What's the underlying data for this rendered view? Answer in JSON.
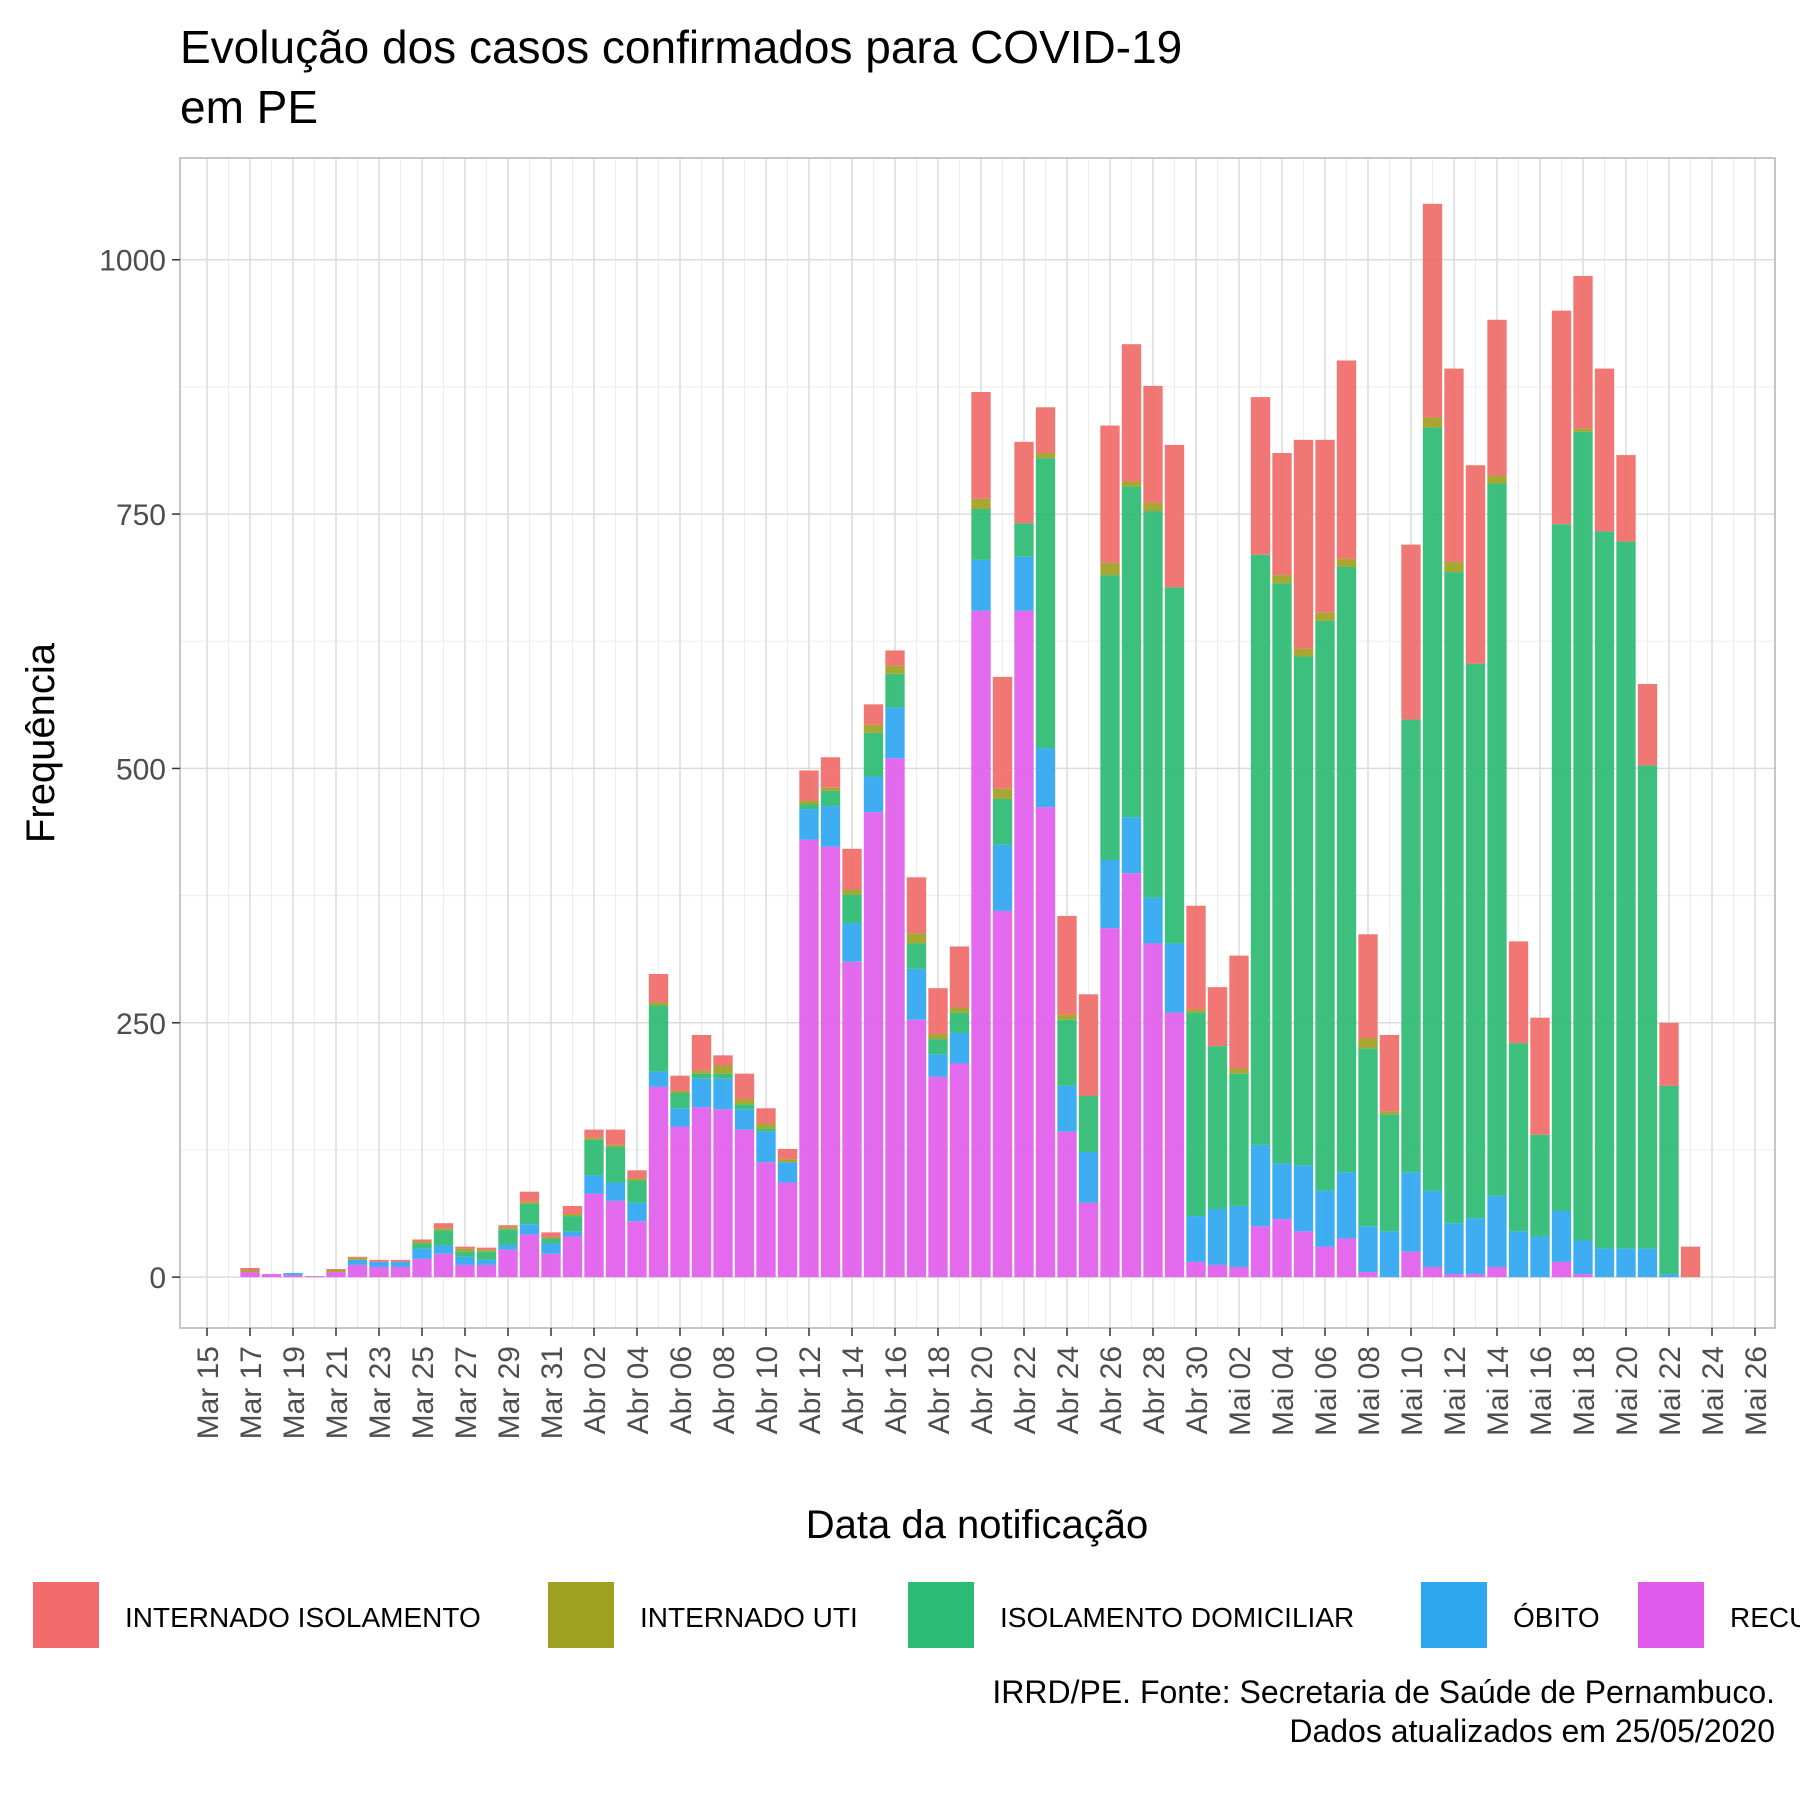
{
  "chart_data": {
    "type": "bar",
    "stacked": true,
    "title_lines": [
      "Evolução dos casos confirmados para COVID-19",
      "em PE"
    ],
    "xlabel": "Data da notificação",
    "ylabel": "Frequência",
    "caption_lines": [
      "IRRD/PE. Fonte: Secretaria de Saúde de Pernambuco.",
      "Dados atualizados em 25/05/2020"
    ],
    "grid": true,
    "legend_position": "bottom",
    "ylim": [
      -50,
      1100
    ],
    "yticks": [
      0,
      250,
      500,
      750,
      1000
    ],
    "x_tick_labels": [
      "Mar 15",
      "Mar 17",
      "Mar 19",
      "Mar 21",
      "Mar 23",
      "Mar 25",
      "Mar 27",
      "Mar 29",
      "Mar 31",
      "Abr 02",
      "Abr 04",
      "Abr 06",
      "Abr 08",
      "Abr 10",
      "Abr 12",
      "Abr 14",
      "Abr 16",
      "Abr 18",
      "Abr 20",
      "Abr 22",
      "Abr 24",
      "Abr 26",
      "Abr 28",
      "Abr 30",
      "Mai 02",
      "Mai 04",
      "Mai 06",
      "Mai 08",
      "Mai 10",
      "Mai 12",
      "Mai 14",
      "Mai 16",
      "Mai 18",
      "Mai 20",
      "Mai 22",
      "Mai 24",
      "Mai 26"
    ],
    "categories": [
      "Mar 17",
      "Mar 18",
      "Mar 19",
      "Mar 20",
      "Mar 21",
      "Mar 22",
      "Mar 23",
      "Mar 24",
      "Mar 25",
      "Mar 26",
      "Mar 27",
      "Mar 28",
      "Mar 29",
      "Mar 30",
      "Mar 31",
      "Abr 01",
      "Abr 02",
      "Abr 03",
      "Abr 04",
      "Abr 05",
      "Abr 06",
      "Abr 07",
      "Abr 08",
      "Abr 09",
      "Abr 10",
      "Abr 11",
      "Abr 12",
      "Abr 13",
      "Abr 14",
      "Abr 15",
      "Abr 16",
      "Abr 17",
      "Abr 18",
      "Abr 19",
      "Abr 20",
      "Abr 21",
      "Abr 22",
      "Abr 23",
      "Abr 24",
      "Abr 25",
      "Abr 26",
      "Abr 27",
      "Abr 28",
      "Abr 29",
      "Abr 30",
      "Mai 01",
      "Mai 02",
      "Mai 03",
      "Mai 04",
      "Mai 05",
      "Mai 06",
      "Mai 07",
      "Mai 08",
      "Mai 09",
      "Mai 10",
      "Mai 11",
      "Mai 12",
      "Mai 13",
      "Mai 14",
      "Mai 15",
      "Mai 16",
      "Mai 17",
      "Mai 18",
      "Mai 19",
      "Mai 20",
      "Mai 21",
      "Mai 22",
      "Mai 23"
    ],
    "series": [
      {
        "name": "RECUPERADO",
        "color": "#E15CEC",
        "values": [
          5,
          3,
          2,
          1,
          5,
          12,
          10,
          10,
          18,
          23,
          12,
          12,
          27,
          42,
          23,
          40,
          82,
          75,
          55,
          187,
          148,
          167,
          165,
          145,
          113,
          93,
          430,
          423,
          310,
          457,
          510,
          253,
          197,
          210,
          655,
          360,
          655,
          462,
          143,
          73,
          343,
          397,
          328,
          260,
          15,
          12,
          10,
          50,
          57,
          45,
          30,
          38,
          5,
          0,
          25,
          10,
          3,
          3,
          10,
          0,
          0,
          15,
          3,
          0,
          0,
          0,
          0,
          0
        ]
      },
      {
        "name": "ÓBITO",
        "color": "#2EA6F0",
        "values": [
          0,
          0,
          2,
          0,
          0,
          5,
          5,
          5,
          10,
          8,
          8,
          5,
          5,
          10,
          10,
          5,
          18,
          18,
          18,
          15,
          18,
          28,
          30,
          20,
          30,
          20,
          30,
          40,
          38,
          35,
          50,
          50,
          22,
          30,
          50,
          65,
          53,
          58,
          45,
          50,
          67,
          55,
          45,
          68,
          45,
          55,
          60,
          80,
          55,
          65,
          55,
          65,
          45,
          45,
          78,
          75,
          50,
          55,
          70,
          45,
          40,
          50,
          33,
          28,
          28,
          28,
          3,
          0
        ]
      },
      {
        "name": "ISOLAMENTO DOMICILIAR",
        "color": "#2CBB73",
        "values": [
          0,
          0,
          0,
          0,
          0,
          0,
          0,
          0,
          5,
          15,
          5,
          8,
          15,
          20,
          5,
          15,
          35,
          35,
          22,
          65,
          15,
          5,
          5,
          5,
          3,
          0,
          5,
          15,
          28,
          43,
          33,
          25,
          15,
          20,
          50,
          45,
          33,
          285,
          65,
          55,
          280,
          325,
          380,
          350,
          200,
          160,
          130,
          580,
          570,
          500,
          560,
          595,
          175,
          115,
          445,
          750,
          640,
          545,
          700,
          185,
          100,
          675,
          795,
          705,
          695,
          475,
          185,
          0
        ]
      },
      {
        "name": "INTERNADO UTI",
        "color": "#A0A020",
        "values": [
          2,
          0,
          0,
          0,
          2,
          2,
          0,
          0,
          2,
          2,
          3,
          2,
          2,
          2,
          1,
          2,
          2,
          2,
          2,
          3,
          2,
          3,
          8,
          5,
          5,
          3,
          3,
          3,
          5,
          8,
          8,
          10,
          5,
          5,
          10,
          10,
          0,
          5,
          5,
          0,
          12,
          5,
          8,
          0,
          3,
          0,
          5,
          0,
          8,
          8,
          8,
          8,
          10,
          3,
          0,
          10,
          10,
          0,
          8,
          0,
          0,
          0,
          3,
          0,
          0,
          0,
          0,
          0
        ]
      },
      {
        "name": "INTERNADO ISOLAMENTO",
        "color": "#F06B69",
        "values": [
          2,
          0,
          0,
          0,
          1,
          1,
          2,
          2,
          2,
          5,
          2,
          2,
          2,
          10,
          5,
          8,
          8,
          15,
          8,
          28,
          15,
          35,
          10,
          25,
          15,
          10,
          30,
          30,
          40,
          20,
          15,
          55,
          45,
          60,
          105,
          110,
          80,
          45,
          97,
          100,
          135,
          135,
          115,
          140,
          102,
          58,
          111,
          155,
          120,
          205,
          170,
          195,
          102,
          75,
          172,
          210,
          190,
          195,
          153,
          100,
          115,
          210,
          150,
          160,
          85,
          80,
          62,
          30
        ]
      }
    ]
  },
  "legend": {
    "items": [
      {
        "label": "INTERNADO ISOLAMENTO",
        "color": "#F06B69"
      },
      {
        "label": "INTERNADO UTI",
        "color": "#A0A020"
      },
      {
        "label": "ISOLAMENTO DOMICILIAR",
        "color": "#2CBB73"
      },
      {
        "label": "ÓBITO",
        "color": "#2EA6F0"
      },
      {
        "label": "RECUPERADO",
        "color": "#E15CEC"
      }
    ]
  }
}
